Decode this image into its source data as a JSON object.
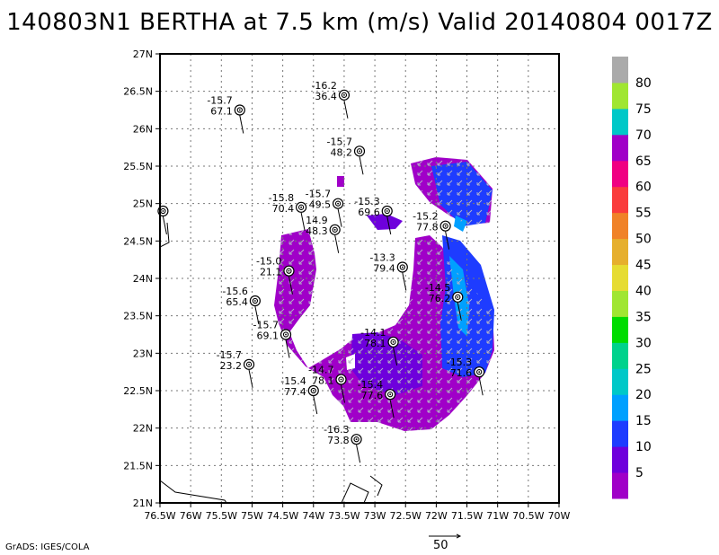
{
  "title": "140803N1 BERTHA at 7.5 km (m/s) Valid 20140804 0017Z",
  "credit": "GrADS: IGES/COLA",
  "reference_vector_label": "50",
  "map": {
    "lon_range": [
      -76.5,
      -70
    ],
    "lat_range": [
      21,
      27
    ],
    "x_ticks": [
      "76.5W",
      "76W",
      "75.5W",
      "75W",
      "74.5W",
      "74W",
      "73.5W",
      "73W",
      "72.5W",
      "72W",
      "71.5W",
      "71W",
      "70.5W",
      "70W"
    ],
    "y_ticks": [
      "21N",
      "21.5N",
      "22N",
      "22.5N",
      "23N",
      "23.5N",
      "24N",
      "24.5N",
      "25N",
      "25.5N",
      "26N",
      "26.5N",
      "27N"
    ],
    "grid": true
  },
  "colorbar": {
    "labels": [
      "5",
      "10",
      "15",
      "20",
      "25",
      "30",
      "35",
      "40",
      "45",
      "50",
      "55",
      "60",
      "65",
      "70",
      "75",
      "80"
    ],
    "colors": [
      "#a000c8",
      "#6e00dc",
      "#1e3cff",
      "#00a0ff",
      "#00c8c8",
      "#00d28c",
      "#00dc00",
      "#a0e632",
      "#e6dc32",
      "#e6af2d",
      "#f08228",
      "#fa3c3c",
      "#f00082",
      "#a000c8",
      "#00c8c8",
      "#a0e632",
      "#aaaaaa"
    ]
  },
  "observations": [
    {
      "lon": -75.2,
      "lat": 26.25,
      "temp": "-15.7",
      "speed": "67.1"
    },
    {
      "lon": -73.5,
      "lat": 26.45,
      "temp": "-16.2",
      "speed": "36.4"
    },
    {
      "lon": -76.45,
      "lat": 24.9,
      "temp": "",
      "speed": ""
    },
    {
      "lon": -73.25,
      "lat": 25.7,
      "temp": "-15.7",
      "speed": "48.2"
    },
    {
      "lon": -74.2,
      "lat": 24.95,
      "temp": "-15.8",
      "speed": "70.4"
    },
    {
      "lon": -73.6,
      "lat": 25.0,
      "temp": "-15.7",
      "speed": "49.5"
    },
    {
      "lon": -72.8,
      "lat": 24.9,
      "temp": "-15.3",
      "speed": "69.6"
    },
    {
      "lon": -73.65,
      "lat": 24.65,
      "temp": "14.9",
      "speed": "48.3"
    },
    {
      "lon": -71.85,
      "lat": 24.7,
      "temp": "-15.2",
      "speed": "77.8"
    },
    {
      "lon": -74.4,
      "lat": 24.1,
      "temp": "-15.0",
      "speed": "21.1"
    },
    {
      "lon": -72.55,
      "lat": 24.15,
      "temp": "-13.3",
      "speed": "79.4"
    },
    {
      "lon": -71.65,
      "lat": 23.75,
      "temp": "-14.5",
      "speed": "76.2"
    },
    {
      "lon": -74.95,
      "lat": 23.7,
      "temp": "-15.6",
      "speed": "65.4"
    },
    {
      "lon": -74.45,
      "lat": 23.25,
      "temp": "-15.7",
      "speed": "69.1"
    },
    {
      "lon": -72.7,
      "lat": 23.15,
      "temp": "-14.1",
      "speed": "78.1"
    },
    {
      "lon": -75.05,
      "lat": 22.85,
      "temp": "-15.7",
      "speed": "23.2"
    },
    {
      "lon": -73.55,
      "lat": 22.65,
      "temp": "-14.7",
      "speed": "78.1"
    },
    {
      "lon": -71.3,
      "lat": 22.75,
      "temp": "-15.3",
      "speed": "71.6"
    },
    {
      "lon": -74.0,
      "lat": 22.5,
      "temp": "-15.4",
      "speed": "77.4"
    },
    {
      "lon": -72.75,
      "lat": 22.45,
      "temp": "-15.4",
      "speed": "77.6"
    },
    {
      "lon": -73.3,
      "lat": 21.85,
      "temp": "-16.3",
      "speed": "73.8"
    }
  ]
}
